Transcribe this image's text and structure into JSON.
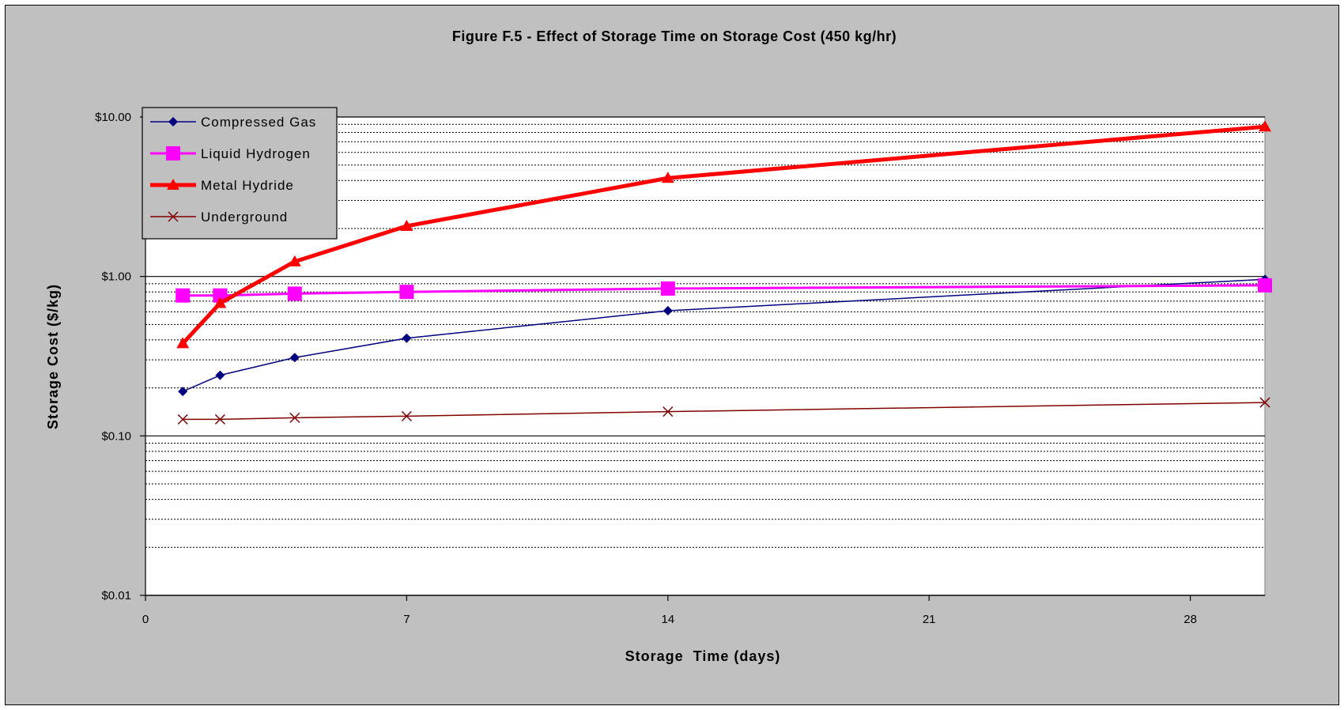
{
  "chart_data": {
    "type": "line",
    "title": "Figure F.5 - Effect of Storage Time on Storage Cost (450 kg/hr)",
    "xlabel": "Storage  Time (days)",
    "ylabel": "Storage Cost ($/kg)",
    "xlim": [
      0,
      30
    ],
    "ylim": [
      0.01,
      10
    ],
    "yscale": "log",
    "x_ticks": [
      0,
      7,
      14,
      21,
      28
    ],
    "x_tick_labels": [
      "0",
      "7",
      "14",
      "21",
      "28"
    ],
    "y_ticks": [
      0.01,
      0.1,
      1,
      10
    ],
    "y_tick_labels": [
      "$0.01",
      "$0.10",
      "$1.00",
      "$10.00"
    ],
    "grid": "minor-dotted-major-solid",
    "legend_position": "top-left",
    "series": [
      {
        "name": "Compressed Gas",
        "color": "#000080",
        "marker": "diamond",
        "x": [
          1,
          2,
          4,
          7,
          14,
          30
        ],
        "y": [
          0.19,
          0.24,
          0.31,
          0.41,
          0.61,
          0.96
        ]
      },
      {
        "name": "Liquid Hydrogen",
        "color": "#ff00ff",
        "marker": "square",
        "x": [
          1,
          2,
          4,
          7,
          14,
          30
        ],
        "y": [
          0.76,
          0.76,
          0.78,
          0.8,
          0.84,
          0.88
        ]
      },
      {
        "name": "Metal Hydride",
        "color": "#ff0000",
        "marker": "triangle",
        "x": [
          1,
          2,
          4,
          7,
          14,
          30
        ],
        "y": [
          0.38,
          0.68,
          1.24,
          2.07,
          4.14,
          8.7
        ]
      },
      {
        "name": "Underground",
        "color": "#800000",
        "marker": "x",
        "x": [
          1,
          2,
          4,
          7,
          14,
          30
        ],
        "y": [
          0.127,
          0.127,
          0.13,
          0.133,
          0.142,
          0.162
        ]
      }
    ]
  }
}
